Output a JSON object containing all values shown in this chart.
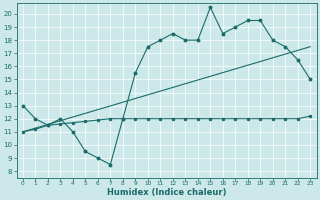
{
  "xlabel": "Humidex (Indice chaleur)",
  "xlim": [
    -0.5,
    23.5
  ],
  "ylim": [
    7.5,
    20.8
  ],
  "xticks": [
    0,
    1,
    2,
    3,
    4,
    5,
    6,
    7,
    8,
    9,
    10,
    11,
    12,
    13,
    14,
    15,
    16,
    17,
    18,
    19,
    20,
    21,
    22,
    23
  ],
  "yticks": [
    8,
    9,
    10,
    11,
    12,
    13,
    14,
    15,
    16,
    17,
    18,
    19,
    20
  ],
  "bg_color": "#cde8e8",
  "line_color": "#1a6b6b",
  "line1_x": [
    0,
    1,
    2,
    3,
    4,
    5,
    6,
    7,
    8,
    9,
    10,
    11,
    12,
    13,
    14,
    15,
    16,
    17,
    18,
    19,
    20,
    21,
    22,
    23
  ],
  "line1_y": [
    13,
    12,
    11.5,
    12,
    11,
    9.5,
    9,
    8.5,
    12,
    15.5,
    17.5,
    18,
    18.5,
    18,
    18,
    20.5,
    18.5,
    19,
    19.5,
    19.5,
    18,
    17.5,
    16.5,
    15
  ],
  "line2_x": [
    0,
    1,
    2,
    3,
    4,
    5,
    6,
    7,
    8,
    9,
    10,
    11,
    12,
    13,
    14,
    15,
    16,
    17,
    18,
    19,
    20,
    21,
    22,
    23
  ],
  "line2_y": [
    11,
    11.2,
    11.5,
    11.6,
    11.7,
    11.8,
    11.9,
    12,
    12,
    12,
    12,
    12,
    12,
    12,
    12,
    12,
    12,
    12,
    12,
    12,
    12,
    12,
    12,
    12.2
  ],
  "line3_x": [
    0,
    23
  ],
  "line3_y": [
    11.0,
    17.5
  ]
}
